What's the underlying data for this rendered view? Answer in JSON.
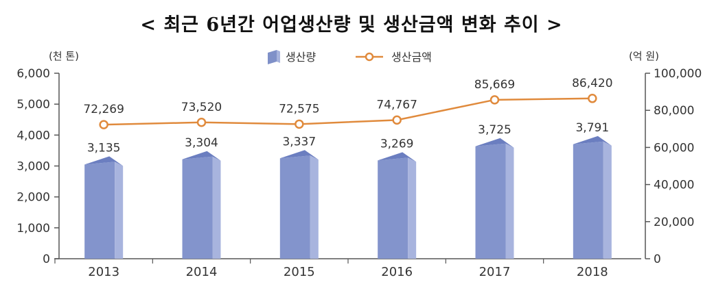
{
  "chart_data": {
    "type": "bar+line",
    "title": "< 최근 6년간 어업생산량 및 생산금액 변화 추이 >",
    "categories": [
      "2013",
      "2014",
      "2015",
      "2016",
      "2017",
      "2018"
    ],
    "series": [
      {
        "name": "생산량",
        "type": "bar",
        "axis": "left",
        "values": [
          3135,
          3304,
          3337,
          3269,
          3725,
          3791
        ],
        "labels": [
          "3,135",
          "3,304",
          "3,337",
          "3,269",
          "3,725",
          "3,791"
        ],
        "color": "#8394cc"
      },
      {
        "name": "생산금액",
        "type": "line",
        "axis": "right",
        "values": [
          72269,
          73520,
          72575,
          74767,
          85669,
          86420
        ],
        "labels": [
          "72,269",
          "73,520",
          "72,575",
          "74,767",
          "85,669",
          "86,420"
        ],
        "color": "#e08a3c"
      }
    ],
    "left_axis": {
      "unit": "(천 톤)",
      "ylim": [
        0,
        6000
      ],
      "ticks": [
        "0",
        "1,000",
        "2,000",
        "3,000",
        "4,000",
        "5,000",
        "6,000"
      ]
    },
    "right_axis": {
      "unit": "(억 원)",
      "ylim": [
        0,
        100000
      ],
      "ticks": [
        "0",
        "20,000",
        "40,000",
        "60,000",
        "80,000",
        "100,000"
      ]
    },
    "legend_position": "top-center",
    "grid": false
  }
}
